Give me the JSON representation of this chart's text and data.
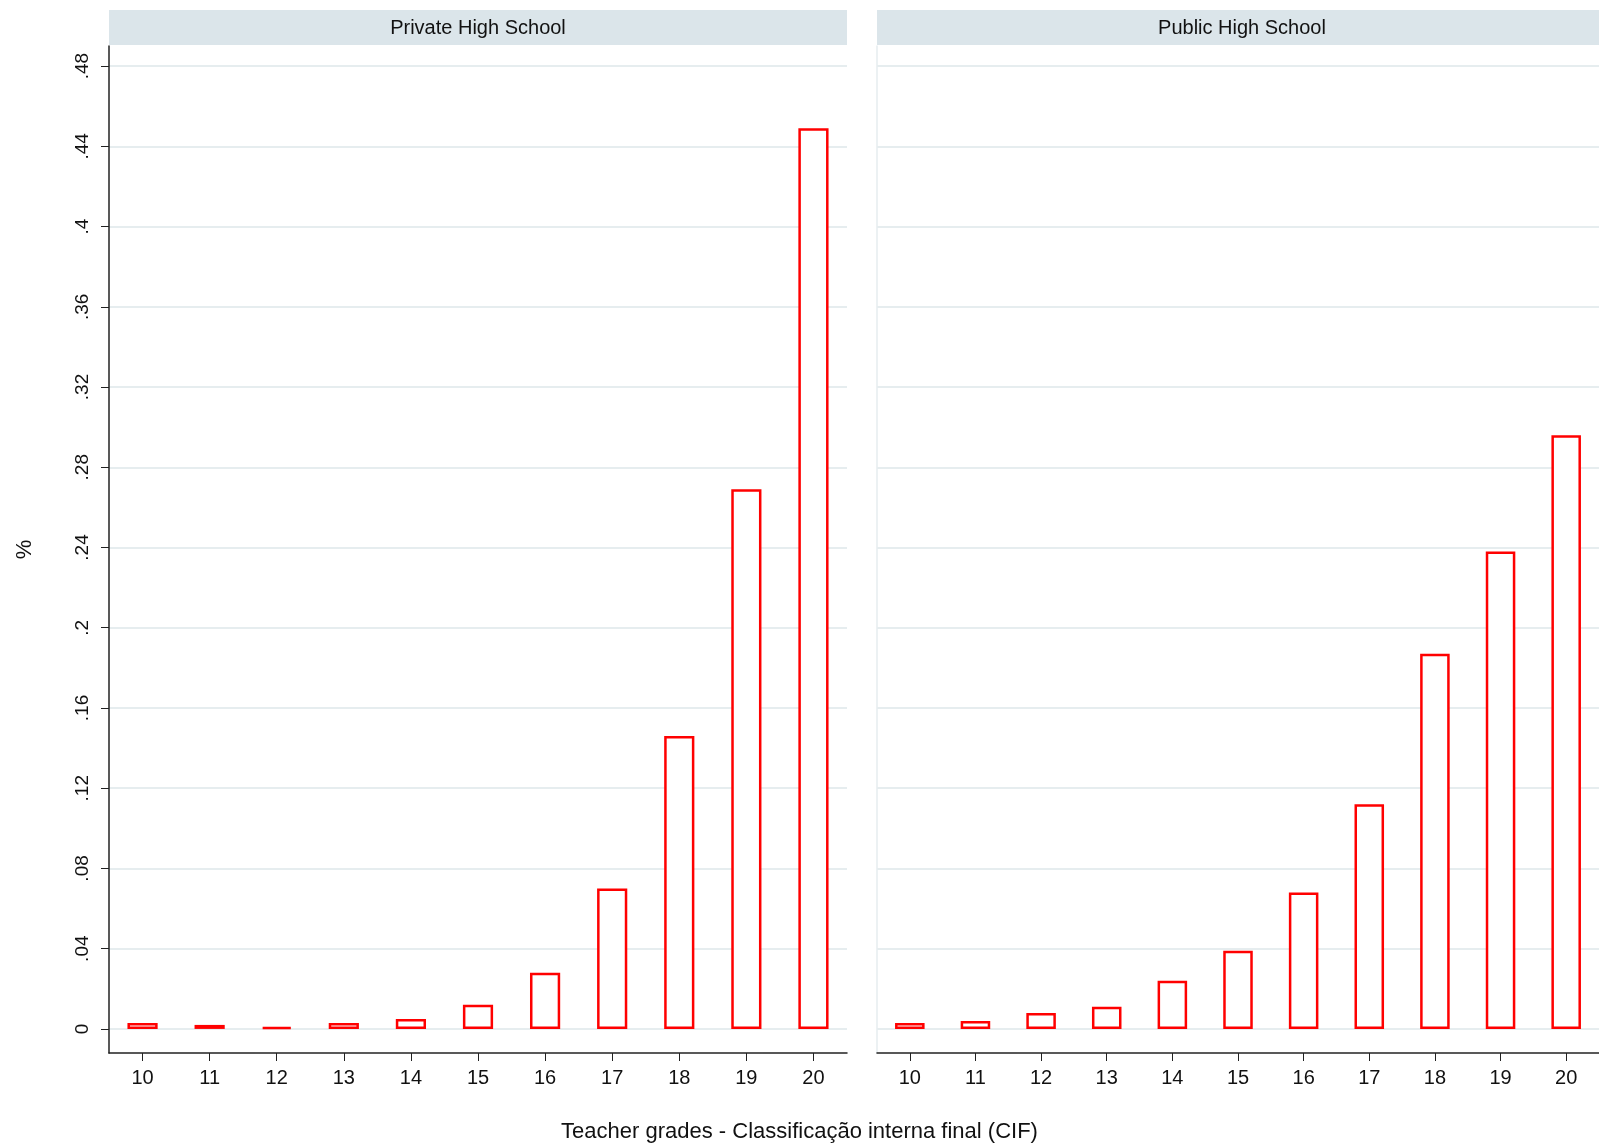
{
  "chart_data": [
    {
      "type": "bar",
      "title": "Private High School",
      "ylabel": "%",
      "xlabel": "Teacher grades - Classificação interna final (CIF)",
      "categories": [
        "10",
        "11",
        "12",
        "13",
        "14",
        "15",
        "16",
        "17",
        "18",
        "19",
        "20"
      ],
      "series": [
        {
          "color": "#ff0000",
          "values": [
            0.003,
            0.002,
            0.001,
            0.003,
            0.005,
            0.012,
            0.028,
            0.07,
            0.146,
            0.269,
            0.449
          ]
        }
      ],
      "ylim": [
        -0.012,
        0.49
      ],
      "yticks": [
        {
          "value": 0,
          "label": "0"
        },
        {
          "value": 0.04,
          "label": ".04"
        },
        {
          "value": 0.08,
          "label": ".08"
        },
        {
          "value": 0.12,
          "label": ".12"
        },
        {
          "value": 0.16,
          "label": ".16"
        },
        {
          "value": 0.2,
          "label": ".2"
        },
        {
          "value": 0.24,
          "label": ".24"
        },
        {
          "value": 0.28,
          "label": ".28"
        },
        {
          "value": 0.32,
          "label": ".32"
        },
        {
          "value": 0.36,
          "label": ".36"
        },
        {
          "value": 0.4,
          "label": ".4"
        },
        {
          "value": 0.44,
          "label": ".44"
        },
        {
          "value": 0.48,
          "label": ".48"
        }
      ],
      "grid": "y"
    },
    {
      "type": "bar",
      "title": "Public High School",
      "categories": [
        "10",
        "11",
        "12",
        "13",
        "14",
        "15",
        "16",
        "17",
        "18",
        "19",
        "20"
      ],
      "series": [
        {
          "color": "#ff0000",
          "values": [
            0.003,
            0.004,
            0.008,
            0.011,
            0.024,
            0.039,
            0.068,
            0.112,
            0.187,
            0.238,
            0.296
          ]
        }
      ],
      "ylim": [
        -0.012,
        0.49
      ],
      "yticks": [
        0,
        0.04,
        0.08,
        0.12,
        0.16,
        0.2,
        0.24,
        0.28,
        0.32,
        0.36,
        0.4,
        0.44,
        0.48
      ],
      "grid": "y",
      "tick_labels": "x"
    }
  ]
}
